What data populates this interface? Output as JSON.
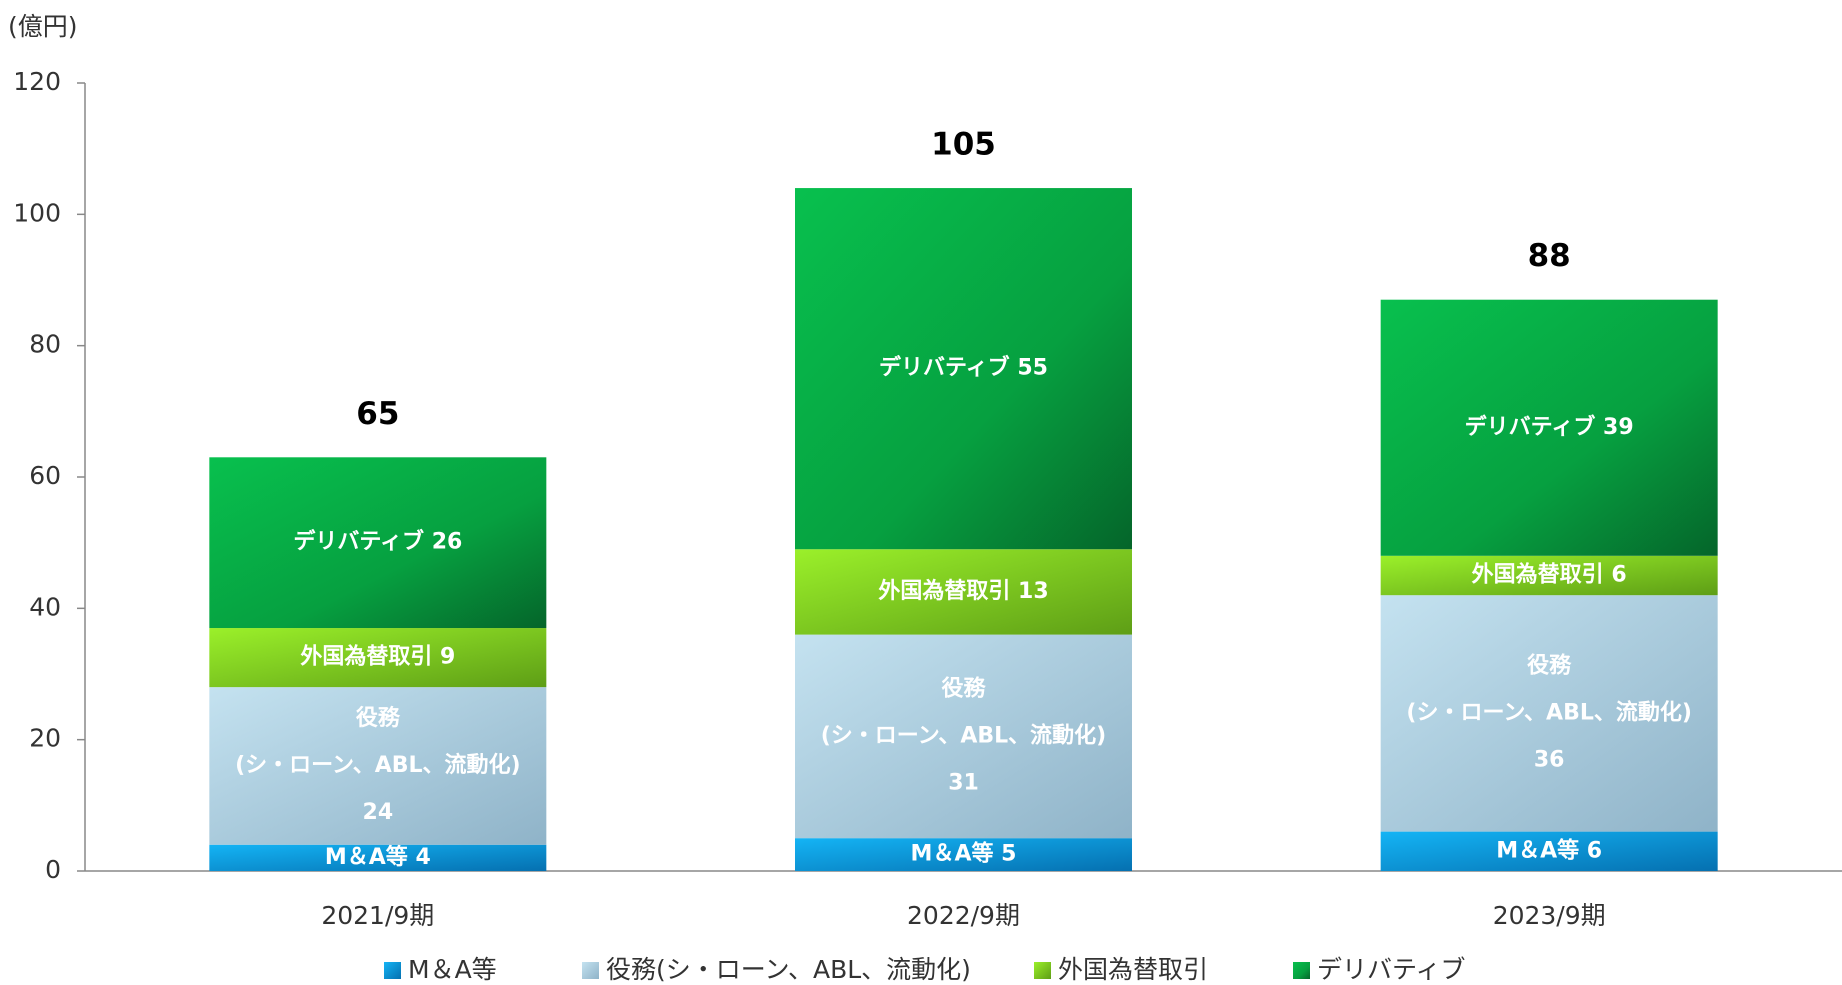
{
  "chart_data": {
    "type": "stacked_bar",
    "y_axis_label": "(億円)",
    "categories": [
      "2021/9期",
      "2022/9期",
      "2023/9期"
    ],
    "series": [
      {
        "name": "M＆A等",
        "label": "M＆A等",
        "color": "#0a9be0",
        "values": [
          4,
          5,
          6
        ]
      },
      {
        "name": "役務(シ・ローン、ABL、流動化)",
        "label": [
          "役務",
          "(シ・ローン、ABL、流動化)"
        ],
        "color": "#a9c9dc",
        "values": [
          24,
          31,
          36
        ]
      },
      {
        "name": "外国為替取引",
        "label": "外国為替取引",
        "color": "#7fcf1f",
        "values": [
          9,
          13,
          6
        ]
      },
      {
        "name": "デリバティブ",
        "label": "デリバティブ",
        "color": "#08ae48",
        "values": [
          26,
          55,
          39
        ]
      }
    ],
    "totals": [
      65,
      105,
      88
    ],
    "ylim": [
      0,
      120
    ],
    "yticks": [
      0,
      20,
      40,
      60,
      80,
      100,
      120
    ]
  }
}
